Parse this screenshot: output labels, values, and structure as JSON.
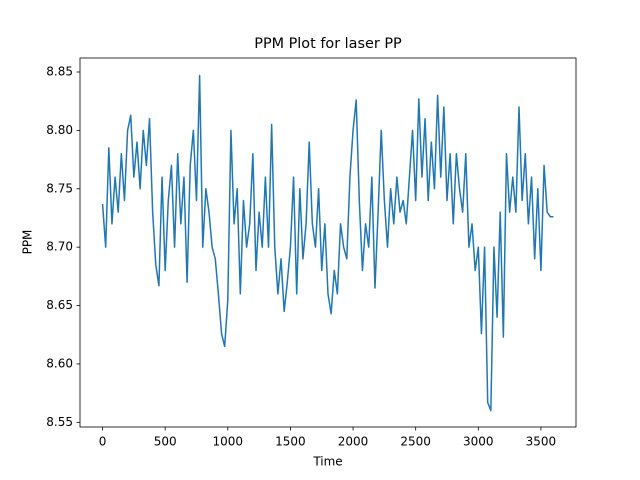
{
  "chart_data": {
    "type": "line",
    "title": "PPM Plot for laser PP",
    "x_label": "Time",
    "y_label": "PPM",
    "x": [
      0,
      25,
      50,
      75,
      100,
      125,
      150,
      175,
      200,
      225,
      250,
      275,
      300,
      325,
      350,
      375,
      400,
      425,
      450,
      475,
      500,
      525,
      550,
      575,
      600,
      625,
      650,
      675,
      700,
      725,
      750,
      775,
      800,
      825,
      850,
      875,
      900,
      925,
      950,
      975,
      1000,
      1025,
      1050,
      1075,
      1100,
      1125,
      1150,
      1175,
      1200,
      1225,
      1250,
      1275,
      1300,
      1325,
      1350,
      1375,
      1400,
      1425,
      1450,
      1475,
      1500,
      1525,
      1550,
      1575,
      1600,
      1625,
      1650,
      1675,
      1700,
      1725,
      1750,
      1775,
      1800,
      1825,
      1850,
      1875,
      1900,
      1925,
      1950,
      1975,
      2000,
      2025,
      2050,
      2075,
      2100,
      2125,
      2150,
      2175,
      2200,
      2225,
      2250,
      2275,
      2300,
      2325,
      2350,
      2375,
      2400,
      2425,
      2450,
      2475,
      2500,
      2525,
      2550,
      2575,
      2600,
      2625,
      2650,
      2675,
      2700,
      2725,
      2750,
      2775,
      2800,
      2825,
      2850,
      2875,
      2900,
      2925,
      2950,
      2975,
      3000,
      3025,
      3050,
      3075,
      3100,
      3125,
      3150,
      3175,
      3200,
      3225,
      3250,
      3275,
      3300,
      3325,
      3350,
      3375,
      3400,
      3425,
      3450,
      3475,
      3500,
      3525,
      3550,
      3575,
      3600
    ],
    "series": [
      {
        "color": "#1f77b4",
        "values": [
          8.737,
          8.7,
          8.785,
          8.72,
          8.76,
          8.73,
          8.78,
          8.74,
          8.8,
          8.813,
          8.76,
          8.79,
          8.75,
          8.8,
          8.77,
          8.81,
          8.73,
          8.685,
          8.667,
          8.76,
          8.68,
          8.74,
          8.77,
          8.7,
          8.78,
          8.72,
          8.76,
          8.67,
          8.77,
          8.8,
          8.74,
          8.847,
          8.7,
          8.75,
          8.73,
          8.7,
          8.69,
          8.66,
          8.626,
          8.615,
          8.655,
          8.8,
          8.72,
          8.75,
          8.66,
          8.74,
          8.7,
          8.72,
          8.78,
          8.68,
          8.73,
          8.7,
          8.76,
          8.7,
          8.805,
          8.7,
          8.66,
          8.69,
          8.645,
          8.67,
          8.7,
          8.76,
          8.66,
          8.75,
          8.69,
          8.72,
          8.79,
          8.72,
          8.7,
          8.75,
          8.68,
          8.72,
          8.66,
          8.643,
          8.68,
          8.66,
          8.72,
          8.7,
          8.69,
          8.76,
          8.8,
          8.826,
          8.74,
          8.68,
          8.72,
          8.7,
          8.76,
          8.665,
          8.73,
          8.8,
          8.74,
          8.7,
          8.75,
          8.72,
          8.76,
          8.73,
          8.74,
          8.72,
          8.76,
          8.8,
          8.74,
          8.827,
          8.76,
          8.81,
          8.74,
          8.79,
          8.75,
          8.83,
          8.76,
          8.82,
          8.74,
          8.78,
          8.72,
          8.78,
          8.75,
          8.73,
          8.78,
          8.7,
          8.72,
          8.68,
          8.7,
          8.626,
          8.7,
          8.567,
          8.56,
          8.7,
          8.64,
          8.73,
          8.623,
          8.78,
          8.73,
          8.76,
          8.73,
          8.82,
          8.74,
          8.78,
          8.72,
          8.76,
          8.69,
          8.75,
          8.68,
          8.77,
          8.73,
          8.726,
          8.726
        ]
      }
    ],
    "xlim": [
      -180,
      3780
    ],
    "xticks": [
      0,
      500,
      1000,
      1500,
      2000,
      2500,
      3000,
      3500
    ],
    "ylim": [
      8.546,
      8.862
    ],
    "yticks": [
      8.55,
      {
        "value": 8.6,
        "label": "8.60"
      },
      8.65,
      {
        "value": 8.7,
        "label": "8.70"
      },
      8.75,
      {
        "value": 8.8,
        "label": "8.80"
      },
      8.85
    ]
  }
}
